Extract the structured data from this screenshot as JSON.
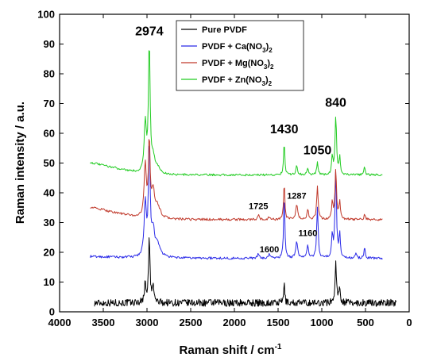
{
  "chart_data": {
    "type": "line",
    "xlabel_main": "Raman shift / cm",
    "xlabel_sup": "-1",
    "ylabel": "Raman intensity / a.u.",
    "xlim": [
      4000,
      0
    ],
    "ylim": [
      0,
      100
    ],
    "x_ticks": [
      "4000",
      "3500",
      "3000",
      "2500",
      "2000",
      "1500",
      "1000",
      "500",
      "0"
    ],
    "y_ticks": [
      "0",
      "10",
      "20",
      "30",
      "40",
      "50",
      "60",
      "70",
      "80",
      "90",
      "100"
    ],
    "x_reversed": true,
    "grid": false,
    "legend_position": "top-right",
    "series": [
      {
        "name": "Pure PVDF",
        "color": "#000000",
        "baseline": 3,
        "x_range": [
          3600,
          150
        ],
        "noise": 1.2,
        "peaks": [
          {
            "x": 3020,
            "height": 6,
            "width": 12
          },
          {
            "x": 2974,
            "height": 21,
            "width": 10
          },
          {
            "x": 2930,
            "height": 5,
            "width": 12
          },
          {
            "x": 1430,
            "height": 7,
            "width": 7
          },
          {
            "x": 840,
            "height": 13,
            "width": 10
          },
          {
            "x": 795,
            "height": 5,
            "width": 10
          }
        ]
      },
      {
        "name": "PVDF + Ca(NO3)2",
        "color": "#2a2ae8",
        "baseline": 18,
        "x_range": [
          3650,
          300
        ],
        "noise": 0.4,
        "peaks": [
          {
            "x": 3020,
            "height": 18,
            "width": 15
          },
          {
            "x": 2974,
            "height": 38,
            "width": 11
          },
          {
            "x": 2930,
            "height": 8,
            "width": 20
          },
          {
            "x": 2880,
            "height": 4,
            "width": 40
          },
          {
            "x": 1725,
            "height": 1.5,
            "width": 10
          },
          {
            "x": 1600,
            "height": 1.5,
            "width": 10
          },
          {
            "x": 1430,
            "height": 23,
            "width": 8
          },
          {
            "x": 1287,
            "height": 6,
            "width": 12
          },
          {
            "x": 1160,
            "height": 4,
            "width": 12
          },
          {
            "x": 1050,
            "height": 17,
            "width": 10
          },
          {
            "x": 880,
            "height": 8,
            "width": 9
          },
          {
            "x": 840,
            "height": 29,
            "width": 10
          },
          {
            "x": 795,
            "height": 8,
            "width": 9
          },
          {
            "x": 610,
            "height": 2,
            "width": 8
          },
          {
            "x": 510,
            "height": 4,
            "width": 8
          }
        ]
      },
      {
        "name": "PVDF + Mg(NO3)2",
        "color": "#c0392b",
        "baseline": 31,
        "x_range": [
          3650,
          300
        ],
        "noise": 0.4,
        "peaks": [
          {
            "x": 3020,
            "height": 18,
            "width": 15
          },
          {
            "x": 2974,
            "height": 26,
            "width": 11
          },
          {
            "x": 2930,
            "height": 8,
            "width": 20
          },
          {
            "x": 2880,
            "height": 4,
            "width": 40
          },
          {
            "x": 1725,
            "height": 1.5,
            "width": 10
          },
          {
            "x": 1600,
            "height": 1,
            "width": 10
          },
          {
            "x": 1430,
            "height": 13,
            "width": 8
          },
          {
            "x": 1287,
            "height": 5,
            "width": 12
          },
          {
            "x": 1160,
            "height": 3,
            "width": 12
          },
          {
            "x": 1050,
            "height": 11,
            "width": 10
          },
          {
            "x": 880,
            "height": 6,
            "width": 9
          },
          {
            "x": 840,
            "height": 17,
            "width": 10
          },
          {
            "x": 795,
            "height": 6,
            "width": 9
          },
          {
            "x": 510,
            "height": 2,
            "width": 8
          }
        ]
      },
      {
        "name": "PVDF + Zn(NO3)2",
        "color": "#22cc22",
        "baseline": 46,
        "x_range": [
          3650,
          300
        ],
        "noise": 0.35,
        "peaks": [
          {
            "x": 3020,
            "height": 17,
            "width": 15
          },
          {
            "x": 2974,
            "height": 44,
            "width": 11
          },
          {
            "x": 2930,
            "height": 5,
            "width": 20
          },
          {
            "x": 2880,
            "height": 2,
            "width": 40
          },
          {
            "x": 1430,
            "height": 12,
            "width": 8
          },
          {
            "x": 1287,
            "height": 3,
            "width": 12
          },
          {
            "x": 1160,
            "height": 2,
            "width": 12
          },
          {
            "x": 1050,
            "height": 4,
            "width": 10
          },
          {
            "x": 880,
            "height": 6,
            "width": 9
          },
          {
            "x": 840,
            "height": 20,
            "width": 10
          },
          {
            "x": 795,
            "height": 6,
            "width": 9
          },
          {
            "x": 510,
            "height": 3,
            "width": 8
          }
        ]
      }
    ],
    "annotations": [
      {
        "text": "2974",
        "x": 2974,
        "y": 93,
        "size": "big"
      },
      {
        "text": "1430",
        "x": 1430,
        "y": 60,
        "size": "big"
      },
      {
        "text": "1050",
        "x": 1050,
        "y": 53,
        "size": "big"
      },
      {
        "text": "840",
        "x": 840,
        "y": 69,
        "size": "big"
      },
      {
        "text": "1725",
        "x": 1725,
        "y": 34.5,
        "size": "small"
      },
      {
        "text": "1287",
        "x": 1287,
        "y": 38,
        "size": "small"
      },
      {
        "text": "1160",
        "x": 1160,
        "y": 25.5,
        "size": "small"
      },
      {
        "text": "1600",
        "x": 1600,
        "y": 20,
        "size": "small"
      }
    ]
  },
  "legend": [
    {
      "main": "Pure PVDF",
      "sub": "",
      "tail": "",
      "color": "#000000"
    },
    {
      "main": "PVDF + Ca(NO",
      "sub": "3",
      "tail": ")2",
      "color": "#2a2ae8"
    },
    {
      "main": "PVDF + Mg(NO",
      "sub": "3",
      "tail": ")2",
      "color": "#c0392b"
    },
    {
      "main": "PVDF + Zn(NO",
      "sub": "3",
      "tail": ")2",
      "color": "#22cc22"
    }
  ]
}
